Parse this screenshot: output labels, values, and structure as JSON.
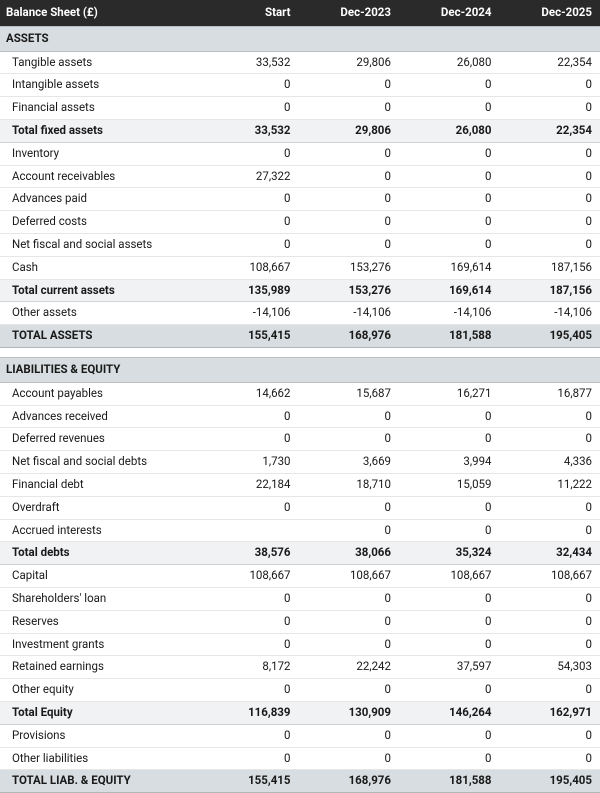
{
  "title": "Balance Sheet (£)",
  "columns": [
    "Start",
    "Dec-2023",
    "Dec-2024",
    "Dec-2025"
  ],
  "colors": {
    "header_bg": "#2a2a2a",
    "header_fg": "#ffffff",
    "section_bg": "#d7dde0",
    "subtotal_bg": "#f0f2f4",
    "row_bg": "#ffffff",
    "border": "#e6e6e6",
    "text": "#1a1a1a"
  },
  "typography": {
    "font_size_pt": 9,
    "bold_weight": 700
  },
  "rows": [
    {
      "type": "section",
      "label": "ASSETS"
    },
    {
      "type": "normal",
      "label": "Tangible assets",
      "v": [
        "33,532",
        "29,806",
        "26,080",
        "22,354"
      ],
      "indent": true
    },
    {
      "type": "normal",
      "label": "Intangible assets",
      "v": [
        "0",
        "0",
        "0",
        "0"
      ],
      "indent": true
    },
    {
      "type": "normal",
      "label": "Financial assets",
      "v": [
        "0",
        "0",
        "0",
        "0"
      ],
      "indent": true
    },
    {
      "type": "subtotal",
      "label": "Total fixed assets",
      "v": [
        "33,532",
        "29,806",
        "26,080",
        "22,354"
      ],
      "indent": true
    },
    {
      "type": "normal",
      "label": "Inventory",
      "v": [
        "0",
        "0",
        "0",
        "0"
      ],
      "indent": true
    },
    {
      "type": "normal",
      "label": "Account receivables",
      "v": [
        "27,322",
        "0",
        "0",
        "0"
      ],
      "indent": true
    },
    {
      "type": "normal",
      "label": "Advances paid",
      "v": [
        "0",
        "0",
        "0",
        "0"
      ],
      "indent": true
    },
    {
      "type": "normal",
      "label": "Deferred costs",
      "v": [
        "0",
        "0",
        "0",
        "0"
      ],
      "indent": true
    },
    {
      "type": "normal",
      "label": "Net fiscal and social assets",
      "v": [
        "0",
        "0",
        "0",
        "0"
      ],
      "indent": true
    },
    {
      "type": "normal",
      "label": "Cash",
      "v": [
        "108,667",
        "153,276",
        "169,614",
        "187,156"
      ],
      "indent": true
    },
    {
      "type": "subtotal",
      "label": "Total current assets",
      "v": [
        "135,989",
        "153,276",
        "169,614",
        "187,156"
      ],
      "indent": true
    },
    {
      "type": "normal",
      "label": "Other assets",
      "v": [
        "-14,106",
        "-14,106",
        "-14,106",
        "-14,106"
      ],
      "indent": true
    },
    {
      "type": "grand",
      "label": "TOTAL ASSETS",
      "v": [
        "155,415",
        "168,976",
        "181,588",
        "195,405"
      ],
      "indent": true
    },
    {
      "type": "spacer"
    },
    {
      "type": "section",
      "label": "LIABILITIES & EQUITY"
    },
    {
      "type": "normal",
      "label": "Account payables",
      "v": [
        "14,662",
        "15,687",
        "16,271",
        "16,877"
      ],
      "indent": true
    },
    {
      "type": "normal",
      "label": "Advances received",
      "v": [
        "0",
        "0",
        "0",
        "0"
      ],
      "indent": true
    },
    {
      "type": "normal",
      "label": "Deferred revenues",
      "v": [
        "0",
        "0",
        "0",
        "0"
      ],
      "indent": true
    },
    {
      "type": "normal",
      "label": "Net fiscal and social debts",
      "v": [
        "1,730",
        "3,669",
        "3,994",
        "4,336"
      ],
      "indent": true
    },
    {
      "type": "normal",
      "label": "Financial debt",
      "v": [
        "22,184",
        "18,710",
        "15,059",
        "11,222"
      ],
      "indent": true
    },
    {
      "type": "normal",
      "label": "Overdraft",
      "v": [
        "0",
        "0",
        "0",
        "0"
      ],
      "indent": true
    },
    {
      "type": "normal",
      "label": "Accrued interests",
      "v": [
        "",
        "0",
        "0",
        "0"
      ],
      "indent": true
    },
    {
      "type": "subtotal",
      "label": "Total debts",
      "v": [
        "38,576",
        "38,066",
        "35,324",
        "32,434"
      ],
      "indent": true
    },
    {
      "type": "normal",
      "label": "Capital",
      "v": [
        "108,667",
        "108,667",
        "108,667",
        "108,667"
      ],
      "indent": true
    },
    {
      "type": "normal",
      "label": "Shareholders' loan",
      "v": [
        "0",
        "0",
        "0",
        "0"
      ],
      "indent": true
    },
    {
      "type": "normal",
      "label": "Reserves",
      "v": [
        "0",
        "0",
        "0",
        "0"
      ],
      "indent": true
    },
    {
      "type": "normal",
      "label": "Investment grants",
      "v": [
        "0",
        "0",
        "0",
        "0"
      ],
      "indent": true
    },
    {
      "type": "normal",
      "label": "Retained earnings",
      "v": [
        "8,172",
        "22,242",
        "37,597",
        "54,303"
      ],
      "indent": true
    },
    {
      "type": "normal",
      "label": "Other equity",
      "v": [
        "0",
        "0",
        "0",
        "0"
      ],
      "indent": true
    },
    {
      "type": "subtotal",
      "label": "Total Equity",
      "v": [
        "116,839",
        "130,909",
        "146,264",
        "162,971"
      ],
      "indent": true
    },
    {
      "type": "normal",
      "label": "Provisions",
      "v": [
        "0",
        "0",
        "0",
        "0"
      ],
      "indent": true
    },
    {
      "type": "normal",
      "label": "Other liabilities",
      "v": [
        "0",
        "0",
        "0",
        "0"
      ],
      "indent": true
    },
    {
      "type": "grand",
      "label": "TOTAL LIAB. & EQUITY",
      "v": [
        "155,415",
        "168,976",
        "181,588",
        "195,405"
      ],
      "indent": true
    }
  ]
}
